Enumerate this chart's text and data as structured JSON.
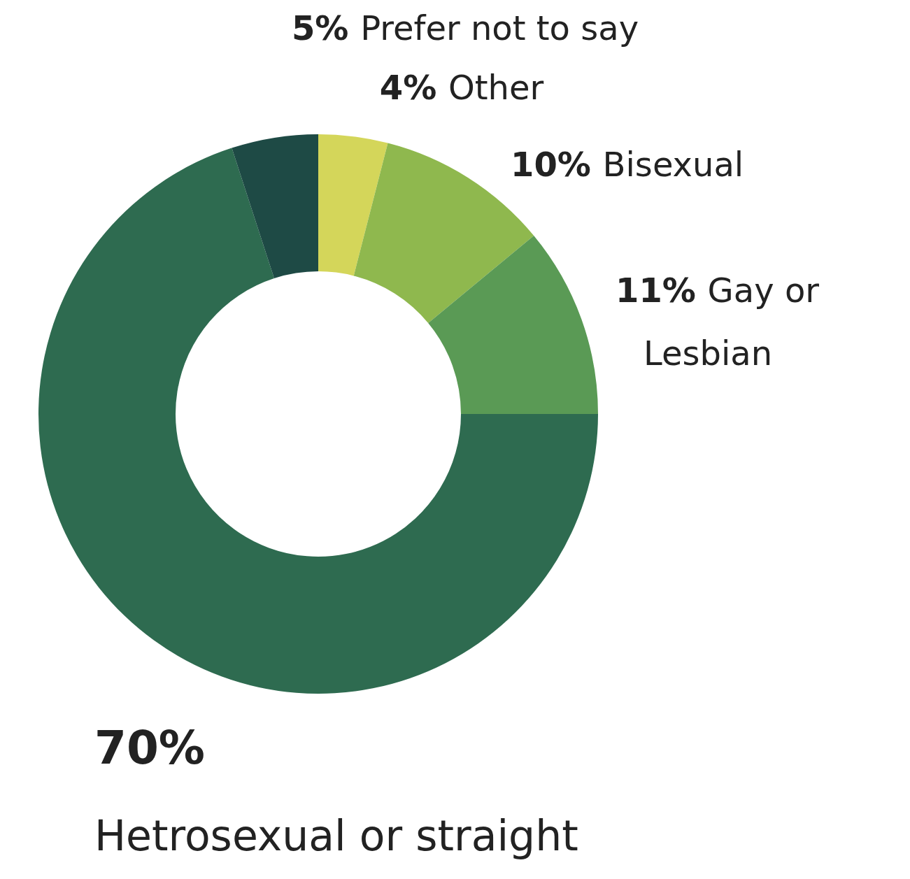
{
  "chart_data": {
    "type": "donut",
    "categories": [
      "Other",
      "Bisexual",
      "Gay or Lesbian",
      "Hetrosexual or straight",
      "Prefer not to say"
    ],
    "values": [
      4,
      10,
      11,
      70,
      5
    ],
    "value_labels": [
      "4%",
      "10%",
      "11%",
      "70%",
      "5%"
    ],
    "colors": [
      "#d4d65a",
      "#8fb84e",
      "#5a9a55",
      "#2e6b50",
      "#1e4a45"
    ],
    "legend": false
  }
}
